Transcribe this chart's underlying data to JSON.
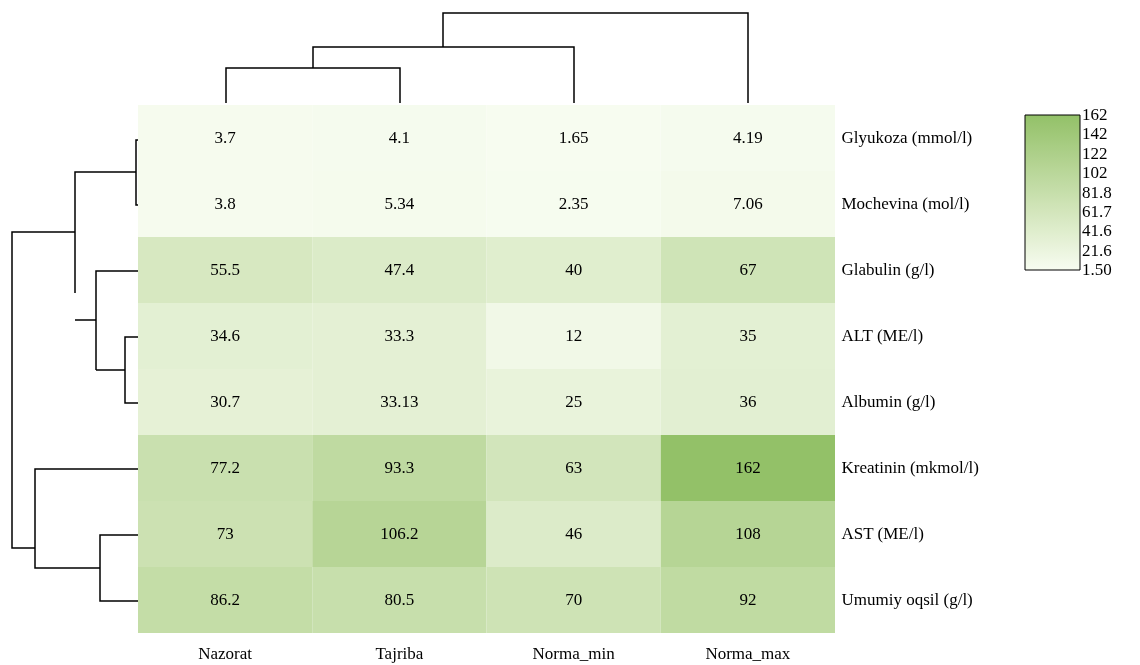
{
  "chart_data": {
    "type": "heatmap",
    "categories": [
      "Nazorat",
      "Tajriba",
      "Norma_min",
      "Norma_max"
    ],
    "y_categories": [
      "Glyukoza (mmol/l)",
      "Mochevina (mol/l)",
      "Glabulin (g/l)",
      "ALT (ME/l)",
      "Albumin (g/l)",
      "Kreatinin (mkmol/l)",
      "AST (ME/l)",
      "Umumiy oqsil (g/l)"
    ],
    "cells": [
      [
        3.7,
        4.1,
        1.65,
        4.19
      ],
      [
        3.8,
        5.34,
        2.35,
        7.06
      ],
      [
        55.5,
        47.4,
        40,
        67
      ],
      [
        34.6,
        33.3,
        12,
        35
      ],
      [
        30.7,
        33.13,
        25,
        36
      ],
      [
        77.2,
        93.3,
        63,
        162
      ],
      [
        73,
        106.2,
        46,
        108
      ],
      [
        86.2,
        80.5,
        70,
        92
      ]
    ],
    "data_labels": true,
    "clim": [
      1.5,
      162
    ],
    "cticks": [
      {
        "value": 1.5,
        "label": "1.50"
      },
      {
        "value": 21.5625,
        "label": "21.6"
      },
      {
        "value": 41.625,
        "label": "41.6"
      },
      {
        "value": 61.6875,
        "label": "61.7"
      },
      {
        "value": 81.75,
        "label": "81.8"
      },
      {
        "value": 101.8125,
        "label": "102"
      },
      {
        "value": 121.875,
        "label": "122"
      },
      {
        "value": 141.9375,
        "label": "142"
      },
      162
    ]
  }
}
